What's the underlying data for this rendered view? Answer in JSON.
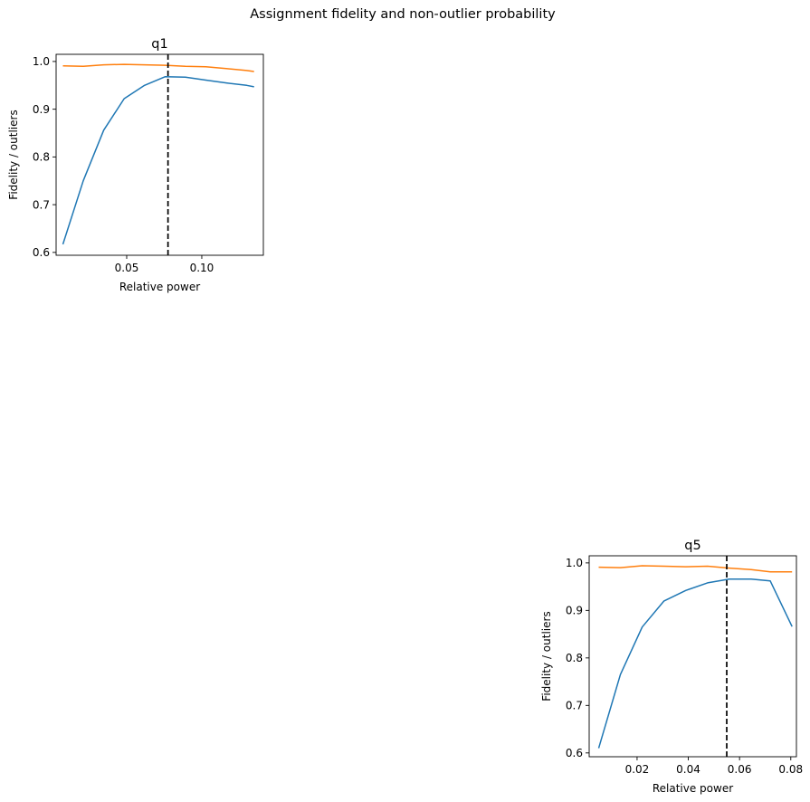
{
  "suptitle": "Assignment fidelity and non-outlier probability",
  "colors": {
    "fidelity": "#1f77b4",
    "non_outlier": "#ff7f0e",
    "marker": "#000000"
  },
  "chart_data": [
    {
      "type": "line",
      "title": "q1",
      "xlabel": "Relative power",
      "ylabel": "Fidelity / outliers",
      "xlim": [
        0.003,
        0.141
      ],
      "ylim": [
        0.594,
        1.015
      ],
      "xticks": [
        0.05,
        0.1
      ],
      "xtick_labels": [
        "0.05",
        "0.10"
      ],
      "yticks": [
        0.6,
        0.7,
        0.8,
        0.9,
        1.0
      ],
      "ytick_labels": [
        "0.6",
        "0.7",
        "0.8",
        "0.9",
        "1.0"
      ],
      "grid": false,
      "vline": 0.0775,
      "series": [
        {
          "key": "fidelity",
          "x": [
            0.0075,
            0.0211,
            0.0347,
            0.0483,
            0.0619,
            0.0755,
            0.0891,
            0.1027,
            0.1163,
            0.1299,
            0.1348
          ],
          "y": [
            0.617,
            0.75,
            0.856,
            0.922,
            0.95,
            0.968,
            0.967,
            0.961,
            0.955,
            0.95,
            0.947
          ]
        },
        {
          "key": "non_outlier",
          "x": [
            0.0075,
            0.0211,
            0.0347,
            0.0483,
            0.0619,
            0.0755,
            0.0891,
            0.1027,
            0.1163,
            0.1299,
            0.1348
          ],
          "y": [
            0.991,
            0.99,
            0.993,
            0.994,
            0.993,
            0.992,
            0.99,
            0.989,
            0.985,
            0.981,
            0.979
          ]
        }
      ]
    },
    {
      "type": "line",
      "title": "q5",
      "xlabel": "Relative power",
      "ylabel": "Fidelity / outliers",
      "xlim": [
        0.0013,
        0.0822
      ],
      "ylim": [
        0.592,
        1.015
      ],
      "xticks": [
        0.02,
        0.04,
        0.06,
        0.08
      ],
      "xtick_labels": [
        "0.02",
        "0.04",
        "0.06",
        "0.08"
      ],
      "yticks": [
        0.6,
        0.7,
        0.8,
        0.9,
        1.0
      ],
      "ytick_labels": [
        "0.6",
        "0.7",
        "0.8",
        "0.9",
        "1.0"
      ],
      "grid": false,
      "vline": 0.055,
      "series": [
        {
          "key": "fidelity",
          "x": [
            0.005,
            0.0135,
            0.022,
            0.0305,
            0.039,
            0.0475,
            0.056,
            0.0645,
            0.072,
            0.0805
          ],
          "y": [
            0.61,
            0.765,
            0.865,
            0.92,
            0.942,
            0.958,
            0.966,
            0.966,
            0.962,
            0.866
          ]
        },
        {
          "key": "non_outlier",
          "x": [
            0.005,
            0.0135,
            0.022,
            0.0305,
            0.039,
            0.0475,
            0.056,
            0.0645,
            0.072,
            0.0805
          ],
          "y": [
            0.991,
            0.99,
            0.994,
            0.993,
            0.992,
            0.993,
            0.989,
            0.986,
            0.981,
            0.981
          ]
        }
      ]
    }
  ]
}
